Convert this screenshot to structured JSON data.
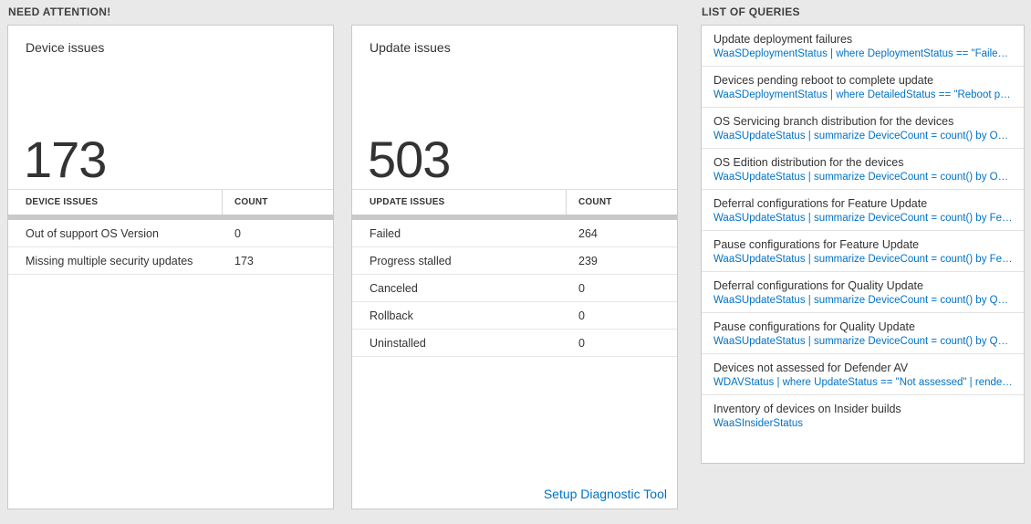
{
  "colors": {
    "background": "#e9e9e9",
    "link_blue": "#0072c6",
    "divider_gray": "#c9c9c9"
  },
  "need_attention": {
    "heading": "NEED ATTENTION!",
    "device_card": {
      "title": "Device issues",
      "count": "173",
      "headers": {
        "label": "DEVICE ISSUES",
        "count": "COUNT"
      },
      "rows": [
        {
          "label": "Out of support OS Version",
          "count": "0"
        },
        {
          "label": "Missing multiple security updates",
          "count": "173"
        }
      ]
    },
    "update_card": {
      "title": "Update issues",
      "count": "503",
      "headers": {
        "label": "UPDATE ISSUES",
        "count": "COUNT"
      },
      "rows": [
        {
          "label": "Failed",
          "count": "264"
        },
        {
          "label": "Progress stalled",
          "count": "239"
        },
        {
          "label": "Canceled",
          "count": "0"
        },
        {
          "label": "Rollback",
          "count": "0"
        },
        {
          "label": "Uninstalled",
          "count": "0"
        }
      ],
      "footer_link": "Setup Diagnostic Tool"
    }
  },
  "queries": {
    "heading": "LIST OF QUERIES",
    "items": [
      {
        "title": "Update deployment failures",
        "query": "WaaSDeploymentStatus | where DeploymentStatus == \"Failed\" |..."
      },
      {
        "title": "Devices pending reboot to complete update",
        "query": "WaaSDeploymentStatus | where DetailedStatus == \"Reboot pend..."
      },
      {
        "title": "OS Servicing branch distribution for the devices",
        "query": "WaaSUpdateStatus | summarize DeviceCount = count() by OSSer..."
      },
      {
        "title": "OS Edition distribution for the devices",
        "query": "WaaSUpdateStatus | summarize DeviceCount = count() by OSEdit..."
      },
      {
        "title": "Deferral configurations for Feature Update",
        "query": "WaaSUpdateStatus | summarize DeviceCount = count() by Featur..."
      },
      {
        "title": "Pause configurations for Feature Update",
        "query": "WaaSUpdateStatus | summarize DeviceCount = count() by Featur..."
      },
      {
        "title": "Deferral configurations for Quality Update",
        "query": "WaaSUpdateStatus | summarize DeviceCount = count() by Qualit..."
      },
      {
        "title": "Pause configurations for Quality Update",
        "query": "WaaSUpdateStatus | summarize DeviceCount = count() by Qualit..."
      },
      {
        "title": "Devices not assessed for Defender AV",
        "query": "WDAVStatus | where UpdateStatus == \"Not assessed\" | render ta..."
      },
      {
        "title": "Inventory of devices on Insider builds",
        "query": "WaaSInsiderStatus"
      }
    ]
  }
}
